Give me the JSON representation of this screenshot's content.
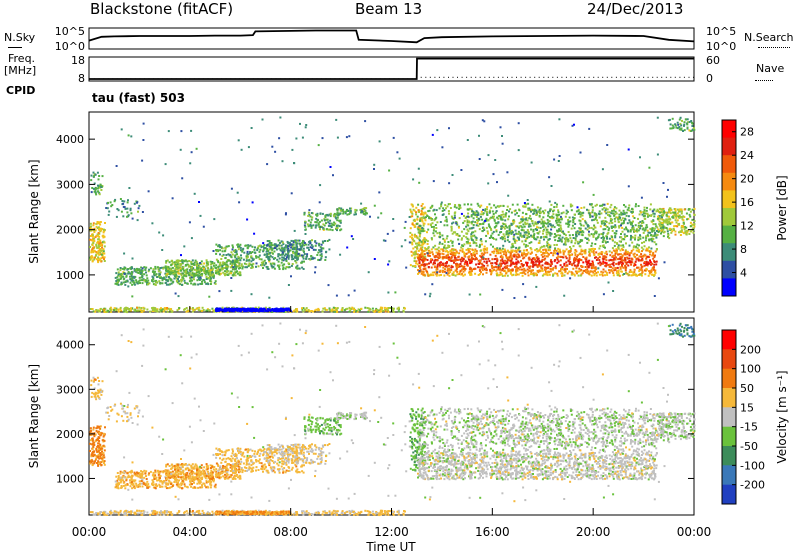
{
  "header": {
    "station": "Blackstone (fitACF)",
    "beam": "Beam 13",
    "date": "24/Dec/2013"
  },
  "left_labels": {
    "nsky": "N.Sky",
    "freq_line1": "Freq.",
    "freq_line2": "[MHz]",
    "cpid": "CPID"
  },
  "right_labels": {
    "nsearch": "N.Search",
    "nave": "Nave"
  },
  "cpid_text": "tau (fast) 503",
  "colors": {
    "axis": "#000000",
    "power_bar": [
      "#0000ff",
      "#2e4fa3",
      "#3c8c78",
      "#55b043",
      "#a0c93a",
      "#f2c21c",
      "#f58a10",
      "#f05a0a",
      "#e02010",
      "#ff0000"
    ],
    "velocity_bar": [
      "#2040c0",
      "#3a78b8",
      "#3c8c5a",
      "#6ac23c",
      "#c0c0c0",
      "#f5b83a",
      "#f07a10",
      "#e84810",
      "#ff0000"
    ]
  },
  "chart_data": [
    {
      "type": "line",
      "name": "N.Sky / N.Search noise panel",
      "x_ticks": [
        "00:00",
        "04:00",
        "08:00",
        "12:00",
        "16:00",
        "20:00",
        "00:00"
      ],
      "left_axis_ticks": [
        "10^5",
        "10^0"
      ],
      "right_axis_ticks": [
        "10^5",
        "10^0"
      ],
      "series": [
        {
          "name": "N.Sky",
          "x_hours": [
            0,
            0.5,
            1,
            2,
            3,
            4,
            5,
            6,
            6.5,
            6.6,
            8,
            9,
            10,
            10.6,
            10.7,
            12,
            13,
            13.3,
            14,
            16,
            18,
            20,
            22,
            23,
            24
          ],
          "y_log10": [
            2.0,
            2.9,
            3.0,
            3.1,
            3.1,
            3.1,
            3.2,
            3.2,
            3.3,
            4.2,
            4.3,
            4.4,
            4.4,
            4.4,
            2.2,
            1.9,
            1.6,
            2.6,
            2.8,
            3.0,
            3.1,
            3.2,
            3.1,
            2.2,
            1.8
          ]
        }
      ]
    },
    {
      "type": "line",
      "name": "Frequency / Nave panel",
      "left_axis_ticks": [
        "18",
        "8"
      ],
      "right_axis_ticks": [
        "60",
        "0"
      ],
      "series": [
        {
          "name": "Freq.",
          "x_hours": [
            0,
            13,
            13.01,
            24
          ],
          "y": [
            8,
            8,
            18,
            18
          ]
        },
        {
          "name": "Nave",
          "x_hours": [
            0,
            13,
            13.01,
            24
          ],
          "y": [
            5,
            5,
            10,
            10
          ]
        }
      ]
    },
    {
      "type": "heatmap",
      "name": "Power range-time panel",
      "xlabel": "",
      "ylabel": "Slant Range [km]",
      "y_ticks": [
        1000,
        2000,
        3000,
        4000
      ],
      "ylim": [
        180,
        4600
      ],
      "xlim_hours": [
        0,
        24
      ],
      "colorbar_label": "Power [dB]",
      "colorbar_ticks": [
        4,
        8,
        12,
        16,
        20,
        24,
        28
      ],
      "clim": [
        0,
        30
      ]
    },
    {
      "type": "heatmap",
      "name": "Velocity range-time panel",
      "xlabel": "Time UT",
      "ylabel": "Slant Range [km]",
      "x_ticks": [
        "00:00",
        "04:00",
        "08:00",
        "12:00",
        "16:00",
        "20:00",
        "00:00"
      ],
      "y_ticks": [
        1000,
        2000,
        3000,
        4000
      ],
      "ylim": [
        180,
        4600
      ],
      "xlim_hours": [
        0,
        24
      ],
      "colorbar_label": "Velocity [m s⁻¹]",
      "colorbar_ticks": [
        200,
        100,
        50,
        15,
        -15,
        -50,
        -100,
        -200
      ],
      "clim": [
        -250,
        250
      ]
    }
  ]
}
